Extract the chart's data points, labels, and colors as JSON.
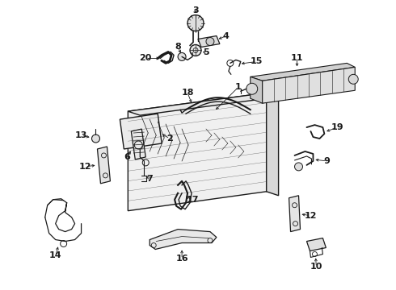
{
  "background_color": "#ffffff",
  "line_color": "#1a1a1a",
  "figsize": [
    4.9,
    3.6
  ],
  "dpi": 100,
  "label_fontsize": 8
}
